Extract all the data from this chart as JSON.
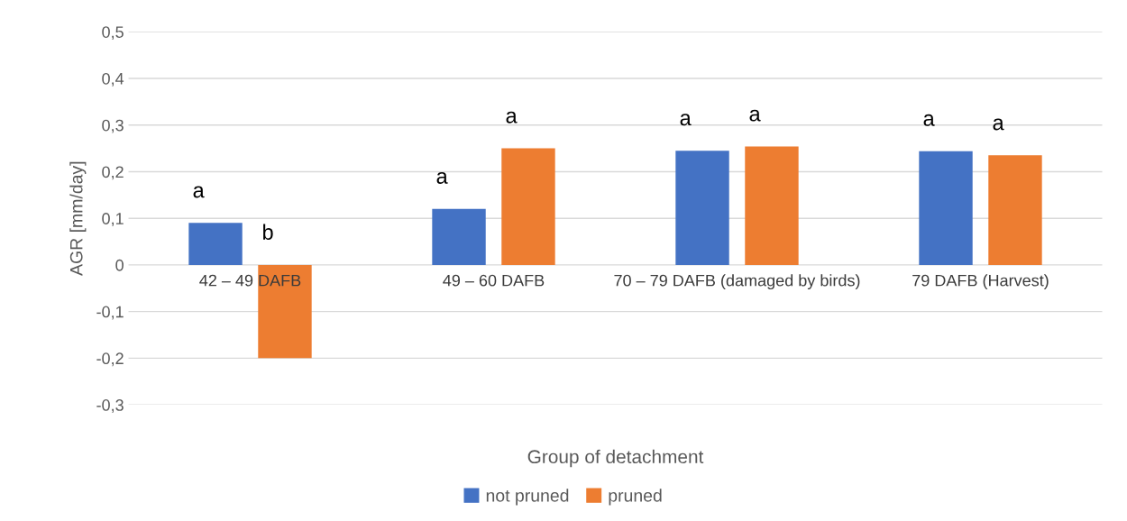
{
  "chart_data": {
    "type": "bar",
    "xlabel": "Group of detachment",
    "ylabel": "AGR [mm/day]",
    "categories": [
      "42 – 49 DAFB",
      "49 – 60 DAFB",
      "70 – 79 DAFB (damaged by birds)",
      "79 DAFB (Harvest)"
    ],
    "series": [
      {
        "name": "not pruned",
        "color": "#4472c4",
        "values": [
          0.09,
          0.12,
          0.245,
          0.244
        ]
      },
      {
        "name": "pruned",
        "color": "#ed7d31",
        "values": [
          -0.2,
          0.25,
          0.254,
          0.235
        ]
      }
    ],
    "ylim": [
      -0.3,
      0.5
    ],
    "yticks": [
      {
        "value": -0.3,
        "label": "-0,3"
      },
      {
        "value": -0.2,
        "label": "-0,2"
      },
      {
        "value": -0.1,
        "label": "-0,1"
      },
      0,
      {
        "value": 0.1,
        "label": "0,1"
      },
      {
        "value": 0.2,
        "label": "0,2"
      },
      {
        "value": 0.3,
        "label": "0,3"
      },
      {
        "value": 0.4,
        "label": "0,4"
      },
      {
        "value": 0.5,
        "label": "0,5"
      }
    ],
    "grid": "y",
    "legend": "bottom",
    "annotations": [
      "a",
      "b",
      "a",
      "a",
      "a",
      "a",
      "a",
      "a"
    ]
  }
}
